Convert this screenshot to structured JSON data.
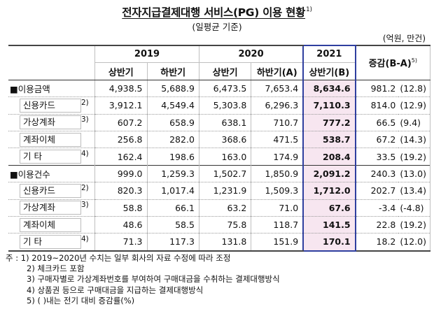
{
  "title": "전자지급결제대행 서비스(PG) 이용 현황",
  "title_note": "1)",
  "subtitle": "(일평균 기준)",
  "unit": "(억원, 만건)",
  "header": {
    "years": [
      "2019",
      "2020",
      "2021"
    ],
    "halves": [
      "상반기",
      "하반기",
      "상반기",
      "하반기(A)",
      "상반기(B)"
    ],
    "change": "증감(B-A)",
    "change_note": "5)"
  },
  "rows": [
    {
      "label": "■이용금액",
      "note": "",
      "sub": false,
      "values": [
        "4,938.5",
        "5,688.9",
        "6,473.5",
        "7,653.4",
        "8,634.6"
      ],
      "diff": "981.2",
      "pct": "(12.8)"
    },
    {
      "label": "신용카드",
      "note": "2)",
      "sub": true,
      "values": [
        "3,912.1",
        "4,549.4",
        "5,303.8",
        "6,296.3",
        "7,110.3"
      ],
      "diff": "814.0",
      "pct": "(12.9)"
    },
    {
      "label": "가상계좌",
      "note": "3)",
      "sub": true,
      "values": [
        "607.2",
        "658.9",
        "638.1",
        "710.7",
        "777.2"
      ],
      "diff": "66.5",
      "pct": "(9.4)"
    },
    {
      "label": "계좌이체",
      "note": "",
      "sub": true,
      "values": [
        "256.8",
        "282.0",
        "368.6",
        "471.5",
        "538.7"
      ],
      "diff": "67.2",
      "pct": "(14.3)"
    },
    {
      "label": "기      타",
      "note": "4)",
      "sub": true,
      "values": [
        "162.4",
        "198.6",
        "163.0",
        "174.9",
        "208.4"
      ],
      "diff": "33.5",
      "pct": "(19.2)"
    },
    {
      "label": "■이용건수",
      "note": "",
      "sub": false,
      "values": [
        "999.0",
        "1,259.3",
        "1,502.7",
        "1,850.9",
        "2,091.2"
      ],
      "diff": "240.3",
      "pct": "(13.0)"
    },
    {
      "label": "신용카드",
      "note": "2)",
      "sub": true,
      "values": [
        "820.3",
        "1,017.4",
        "1,231.9",
        "1,509.3",
        "1,712.0"
      ],
      "diff": "202.7",
      "pct": "(13.4)"
    },
    {
      "label": "가상계좌",
      "note": "3)",
      "sub": true,
      "values": [
        "58.8",
        "66.1",
        "63.2",
        "71.0",
        "67.6"
      ],
      "diff": "-3.4",
      "pct": "(-4.8)"
    },
    {
      "label": "계좌이체",
      "note": "",
      "sub": true,
      "values": [
        "48.6",
        "58.5",
        "75.8",
        "118.7",
        "141.5"
      ],
      "diff": "22.8",
      "pct": "(19.2)"
    },
    {
      "label": "기      타",
      "note": "4)",
      "sub": true,
      "values": [
        "71.3",
        "117.3",
        "131.8",
        "151.9",
        "170.1"
      ],
      "diff": "18.2",
      "pct": "(12.0)"
    }
  ],
  "notes": [
    "주 : 1) 2019~2020년 수치는 일부 회사의 자료 수정에 따라 조정",
    "2) 체크카드 포함",
    "3) 구매자별로 가상계좌번호를 부여하여 구매대금을 수취하는 결제대행방식",
    "4) 상품권 등으로 구매대금을 지급하는 결제대행방식",
    "5) (   )내는 전기 대비 증감률(%)"
  ]
}
